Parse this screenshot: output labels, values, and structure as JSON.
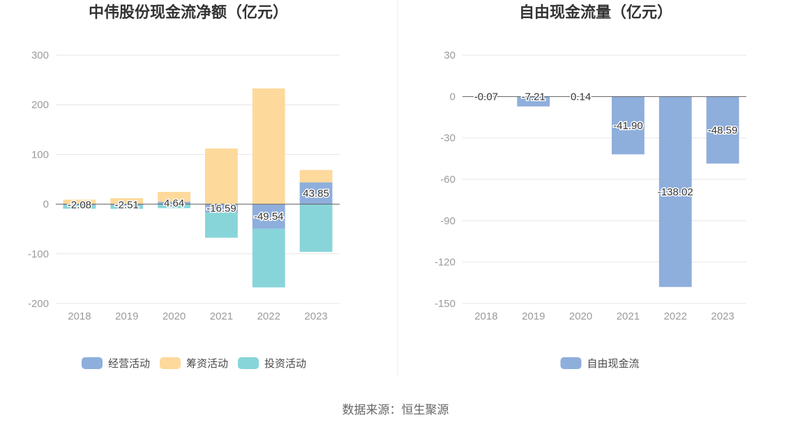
{
  "colors": {
    "operating": "#8eaedc",
    "financing": "#fed99c",
    "investing": "#88d5d9",
    "fcf": "#8eaedc",
    "grid": "#e6e6e6",
    "axis": "#666666"
  },
  "source": "数据来源：恒生聚源",
  "chart_data": [
    {
      "type": "bar",
      "stacked": true,
      "title": "中伟股份现金流净额（亿元）",
      "categories": [
        "2018",
        "2019",
        "2020",
        "2021",
        "2022",
        "2023"
      ],
      "ylim": [
        -200,
        300
      ],
      "yticks": [
        "300",
        "200",
        "100",
        "0",
        "-100",
        "-200"
      ],
      "grid": true,
      "legend_position": "bottom",
      "series": [
        {
          "name": "经营活动",
          "key": "operating",
          "values": [
            -2.08,
            -2.51,
            4.64,
            -16.59,
            -49.54,
            43.85
          ]
        },
        {
          "name": "筹资活动",
          "key": "financing",
          "values": [
            9,
            12,
            20,
            112,
            233,
            25
          ]
        },
        {
          "name": "投资活动",
          "key": "investing",
          "values": [
            -7,
            -7,
            -8,
            -51,
            -118,
            -96
          ]
        }
      ],
      "data_labels": [
        "-2.08",
        "-2.51",
        "4.64",
        "-16.59",
        "-49.54",
        "43.85"
      ]
    },
    {
      "type": "bar",
      "title": "自由现金流量（亿元）",
      "categories": [
        "2018",
        "2019",
        "2020",
        "2021",
        "2022",
        "2023"
      ],
      "ylim": [
        -150,
        30
      ],
      "yticks": [
        "30",
        "0",
        "-30",
        "-60",
        "-90",
        "-120",
        "-150"
      ],
      "grid": true,
      "legend_position": "bottom",
      "series": [
        {
          "name": "自由现金流",
          "key": "fcf",
          "values": [
            -0.07,
            -7.21,
            0.14,
            -41.9,
            -138.02,
            -48.59
          ]
        }
      ],
      "data_labels": [
        "-0.07",
        "-7.21",
        "0.14",
        "-41.90",
        "-138.02",
        "-48.59"
      ]
    }
  ]
}
